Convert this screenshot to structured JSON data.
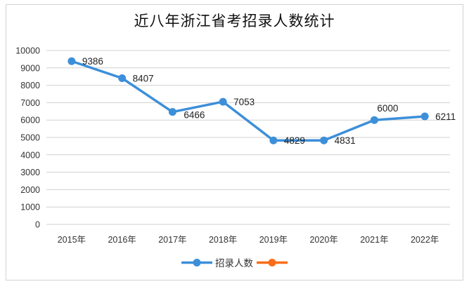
{
  "chart_data": {
    "type": "line",
    "title": "近八年浙江省考招录人数统计",
    "categories": [
      "2015年",
      "2016年",
      "2017年",
      "2018年",
      "2019年",
      "2020年",
      "2021年",
      "2022年"
    ],
    "series": [
      {
        "name": "招录人数",
        "color": "#3d8fd9",
        "values": [
          9386,
          8407,
          6466,
          7053,
          4829,
          4831,
          6000,
          6211
        ]
      },
      {
        "name": "",
        "color": "#fa6c18",
        "values": []
      }
    ],
    "data_labels": [
      "9386",
      "8407",
      "6466",
      "7053",
      "4829",
      "4831",
      "6000",
      "6211"
    ],
    "label_positions": [
      "right",
      "right",
      "right-low",
      "right",
      "right",
      "right",
      "above",
      "right"
    ],
    "xlabel": "",
    "ylabel": "",
    "ylim": [
      0,
      10000
    ],
    "yticks": [
      0,
      1000,
      2000,
      3000,
      4000,
      5000,
      6000,
      7000,
      8000,
      9000,
      10000
    ],
    "grid": true,
    "grid_color": "#d0d0d0",
    "legend_position": "bottom"
  }
}
